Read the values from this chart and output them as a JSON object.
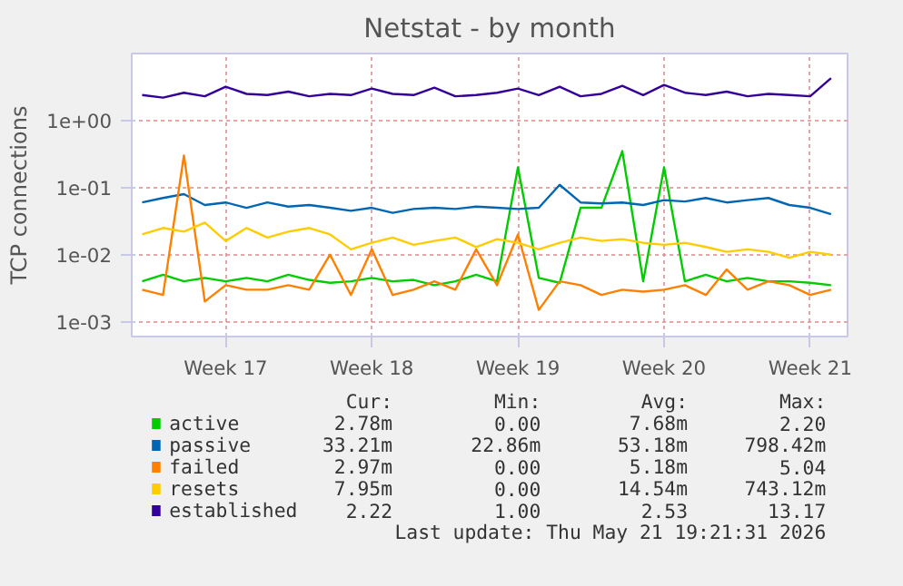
{
  "chart_data": {
    "type": "line",
    "title": "Netstat - by month",
    "ylabel": "TCP connections",
    "log": "y",
    "grid": true,
    "legend": "bottom",
    "x": [
      "2026-04-18",
      "2026-04-19",
      "2026-04-20",
      "2026-04-21",
      "2026-04-22",
      "2026-04-23",
      "2026-04-24",
      "2026-04-25",
      "2026-04-26",
      "2026-04-27",
      "2026-04-28",
      "2026-04-29",
      "2026-04-30",
      "2026-05-01",
      "2026-05-02",
      "2026-05-03",
      "2026-05-04",
      "2026-05-05",
      "2026-05-06",
      "2026-05-07",
      "2026-05-08",
      "2026-05-09",
      "2026-05-10",
      "2026-05-11",
      "2026-05-12",
      "2026-05-13",
      "2026-05-14",
      "2026-05-15",
      "2026-05-16",
      "2026-05-17",
      "2026-05-18",
      "2026-05-19",
      "2026-05-20",
      "2026-05-21"
    ],
    "xlim": [
      "2026-04-17T12:00",
      "2026-05-21T19:00"
    ],
    "xticks": [
      {
        "value": "2026-04-22",
        "label": "Week 17"
      },
      {
        "value": "2026-04-29",
        "label": "Week 18"
      },
      {
        "value": "2026-05-06",
        "label": "Week 19"
      },
      {
        "value": "2026-05-13",
        "label": "Week 20"
      },
      {
        "value": "2026-05-20",
        "label": "Week 21"
      }
    ],
    "ylim": [
      0.0006,
      10
    ],
    "yticks": [
      {
        "value": 0.001,
        "label": "1e-03"
      },
      {
        "value": 0.01,
        "label": "1e-02"
      },
      {
        "value": 0.1,
        "label": "1e-01"
      },
      {
        "value": 1,
        "label": "1e+00"
      }
    ],
    "series": [
      {
        "name": "active",
        "color": "#00cc00",
        "values": [
          0.004,
          0.005,
          0.004,
          0.0045,
          0.004,
          0.0045,
          0.004,
          0.005,
          0.0042,
          0.0038,
          0.004,
          0.0045,
          0.004,
          0.0042,
          0.0035,
          0.004,
          0.005,
          0.004,
          0.2,
          0.0045,
          0.0038,
          0.05,
          0.05,
          0.35,
          0.004,
          0.2,
          0.004,
          0.005,
          0.004,
          0.0045,
          0.004,
          0.004,
          0.0038,
          0.0035
        ]
      },
      {
        "name": "passive",
        "color": "#0066b3",
        "values": [
          0.06,
          0.07,
          0.08,
          0.055,
          0.06,
          0.05,
          0.06,
          0.052,
          0.055,
          0.05,
          0.045,
          0.05,
          0.042,
          0.048,
          0.05,
          0.048,
          0.052,
          0.05,
          0.048,
          0.05,
          0.11,
          0.06,
          0.058,
          0.06,
          0.055,
          0.065,
          0.062,
          0.07,
          0.06,
          0.065,
          0.07,
          0.055,
          0.05,
          0.04
        ]
      },
      {
        "name": "failed",
        "color": "#ff8000",
        "values": [
          0.003,
          0.0025,
          0.3,
          0.002,
          0.0035,
          0.003,
          0.003,
          0.0035,
          0.003,
          0.01,
          0.0025,
          0.012,
          0.0025,
          0.003,
          0.004,
          0.003,
          0.012,
          0.0035,
          0.02,
          0.0015,
          0.004,
          0.0035,
          0.0025,
          0.003,
          0.0028,
          0.003,
          0.0035,
          0.0025,
          0.006,
          0.003,
          0.004,
          0.0035,
          0.0025,
          0.003
        ]
      },
      {
        "name": "resets",
        "color": "#ffcc00",
        "values": [
          0.02,
          0.025,
          0.022,
          0.03,
          0.016,
          0.025,
          0.018,
          0.022,
          0.025,
          0.02,
          0.012,
          0.015,
          0.018,
          0.014,
          0.016,
          0.018,
          0.013,
          0.017,
          0.015,
          0.012,
          0.015,
          0.018,
          0.016,
          0.017,
          0.015,
          0.014,
          0.015,
          0.013,
          0.011,
          0.012,
          0.011,
          0.009,
          0.011,
          0.01
        ]
      },
      {
        "name": "established",
        "color": "#330099",
        "values": [
          2.4,
          2.2,
          2.6,
          2.3,
          3.2,
          2.5,
          2.4,
          2.7,
          2.3,
          2.5,
          2.4,
          3.0,
          2.5,
          2.4,
          3.1,
          2.3,
          2.4,
          2.6,
          3.0,
          2.4,
          3.2,
          2.3,
          2.5,
          3.3,
          2.4,
          3.4,
          2.6,
          2.4,
          2.7,
          2.3,
          2.5,
          2.4,
          2.3,
          4.3
        ]
      }
    ],
    "annotations": [
      "Cur: Min: Avg: Max:",
      "2.78m 0.00 7.68m 2.20",
      "33.21m 22.86m 53.18m 798.42m",
      "2.97m 0.00 5.18m 5.04",
      "7.95m 0.00 14.54m 743.12m",
      "2.22 1.00 2.53 13.17",
      "Last update: Thu May 21 19:21:31 2026"
    ]
  }
}
